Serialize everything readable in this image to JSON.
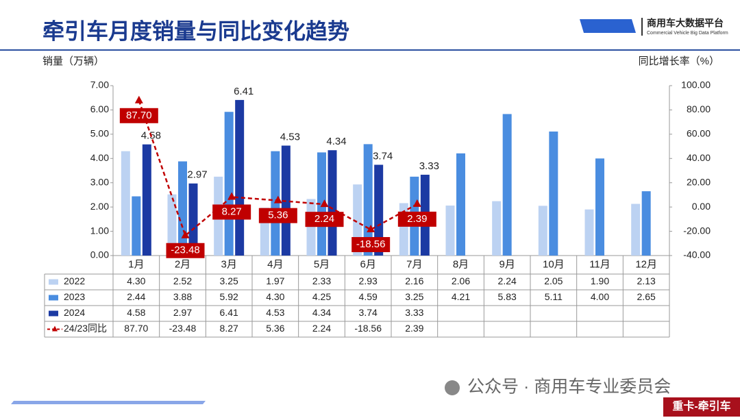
{
  "header": {
    "title": "牵引车月度销量与同比变化趋势",
    "logo_name": "商用车大数据平台",
    "logo_subtitle": "Commercial Vehicle Big Data Platform"
  },
  "chart_data": {
    "type": "bar",
    "y_label": "销量（万辆）",
    "y2_label": "同比增长率（%）",
    "categories": [
      "1月",
      "2月",
      "3月",
      "4月",
      "5月",
      "6月",
      "7月",
      "8月",
      "9月",
      "10月",
      "11月",
      "12月"
    ],
    "series": [
      {
        "name": "2022",
        "color": "#bcd2f2",
        "values": [
          4.3,
          2.52,
          3.25,
          1.97,
          2.33,
          2.93,
          2.16,
          2.06,
          2.24,
          2.05,
          1.9,
          2.13
        ],
        "value_labels": [
          "4.30",
          "2.52",
          "3.25",
          "1.97",
          "2.33",
          "2.93",
          "2.16",
          "2.06",
          "2.24",
          "2.05",
          "1.90",
          "2.13"
        ]
      },
      {
        "name": "2023",
        "color": "#4a8de0",
        "values": [
          2.44,
          3.88,
          5.92,
          4.3,
          4.25,
          4.59,
          3.25,
          4.21,
          5.83,
          5.11,
          4.0,
          2.65
        ],
        "value_labels": [
          "2.44",
          "3.88",
          "5.92",
          "4.30",
          "4.25",
          "4.59",
          "3.25",
          "4.21",
          "5.83",
          "5.11",
          "4.00",
          "2.65"
        ]
      },
      {
        "name": "2024",
        "color": "#1c3aa3",
        "values": [
          4.58,
          2.97,
          6.41,
          4.53,
          4.34,
          3.74,
          3.33,
          null,
          null,
          null,
          null,
          null
        ],
        "value_labels": [
          "4.58",
          "2.97",
          "6.41",
          "4.53",
          "4.34",
          "3.74",
          "3.33",
          null,
          null,
          null,
          null,
          null
        ]
      },
      {
        "name": "24/23同比",
        "type": "line",
        "axis": "y2",
        "color": "#c00000",
        "values": [
          87.7,
          -23.48,
          8.27,
          5.36,
          2.24,
          -18.56,
          2.39,
          null,
          null,
          null,
          null,
          null
        ],
        "value_labels": [
          "87.70",
          "-23.48",
          "8.27",
          "5.36",
          "2.24",
          "-18.56",
          "2.39",
          null,
          null,
          null,
          null,
          null
        ]
      }
    ],
    "ylim": [
      0,
      7
    ],
    "yticks": [
      {
        "value": 0,
        "label": "0.00"
      },
      {
        "value": 1,
        "label": "1.00"
      },
      {
        "value": 2,
        "label": "2.00"
      },
      {
        "value": 3,
        "label": "3.00"
      },
      {
        "value": 4,
        "label": "4.00"
      },
      {
        "value": 5,
        "label": "5.00"
      },
      {
        "value": 6,
        "label": "6.00"
      },
      {
        "value": 7,
        "label": "7.00"
      }
    ],
    "y2lim": [
      -40,
      100
    ],
    "y2ticks": [
      {
        "value": -40,
        "label": "-40.00"
      },
      {
        "value": -20,
        "label": "-20.00"
      },
      {
        "value": 0,
        "label": "0.00"
      },
      {
        "value": 20,
        "label": "20.00"
      },
      {
        "value": 40,
        "label": "40.00"
      },
      {
        "value": 60,
        "label": "60.00"
      },
      {
        "value": 80,
        "label": "80.00"
      },
      {
        "value": 100,
        "label": "100.00"
      }
    ],
    "grid": false
  },
  "footer": {
    "account": "公众号 · 商用车专业委员会",
    "tag": "重卡-牵引车"
  }
}
